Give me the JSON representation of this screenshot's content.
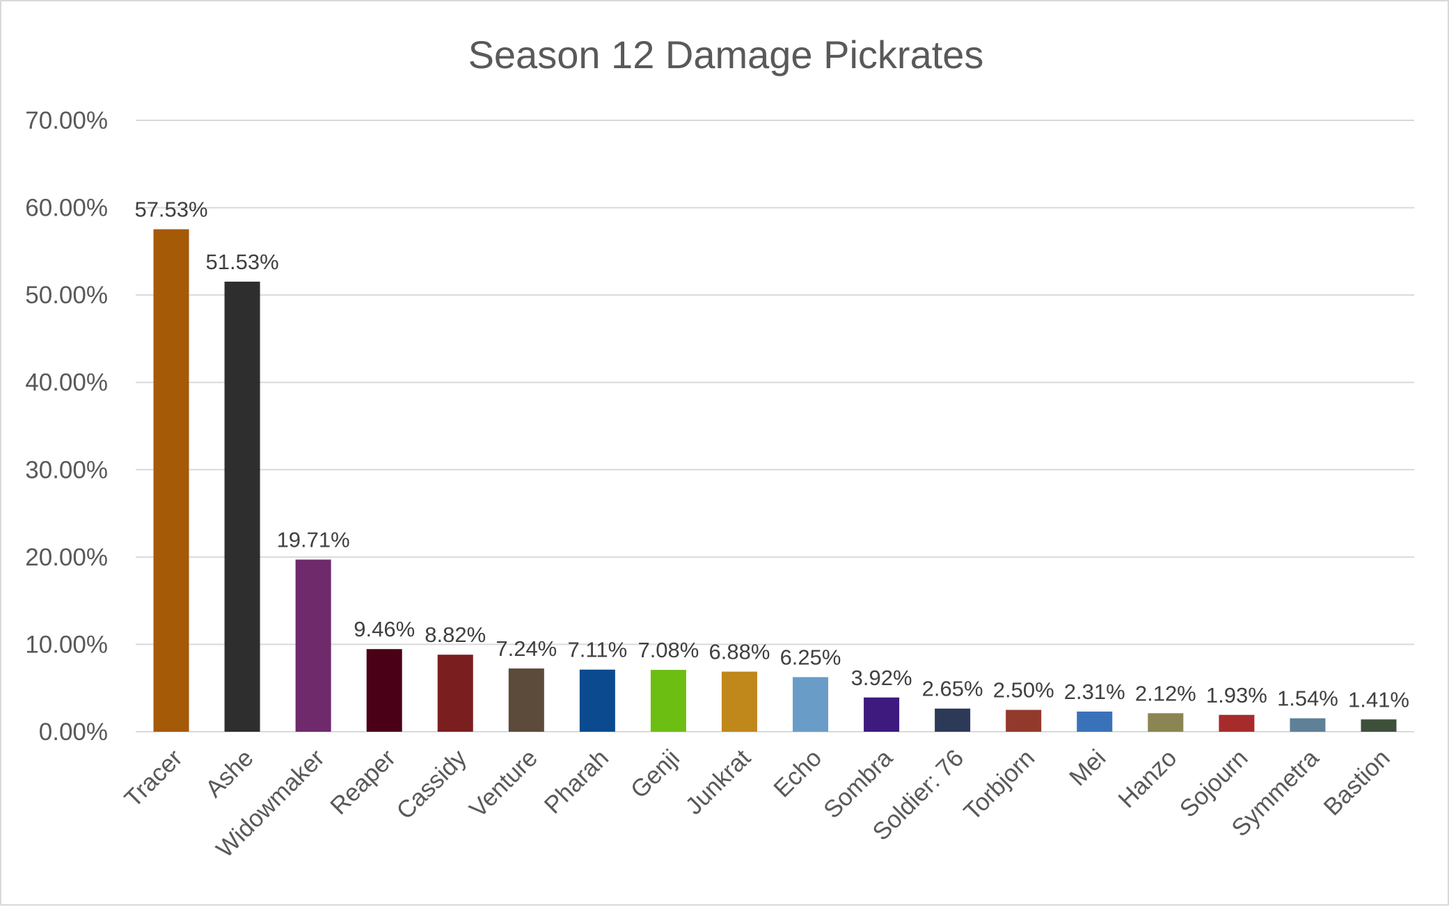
{
  "chart_data": {
    "type": "bar",
    "title": "Season 12 Damage Pickrates",
    "xlabel": "",
    "ylabel": "",
    "ylim": [
      0,
      70
    ],
    "yticks": [
      "0.00%",
      "10.00%",
      "20.00%",
      "30.00%",
      "40.00%",
      "50.00%",
      "60.00%",
      "70.00%"
    ],
    "grid": true,
    "legend": "none",
    "categories": [
      "Tracer",
      "Ashe",
      "Widowmaker",
      "Reaper",
      "Cassidy",
      "Venture",
      "Pharah",
      "Genji",
      "Junkrat",
      "Echo",
      "Sombra",
      "Soldier: 76",
      "Torbjorn",
      "Mei",
      "Hanzo",
      "Sojourn",
      "Symmetra",
      "Bastion"
    ],
    "values": [
      57.53,
      51.53,
      19.71,
      9.46,
      8.82,
      7.24,
      7.11,
      7.08,
      6.88,
      6.25,
      3.92,
      2.65,
      2.5,
      2.31,
      2.12,
      1.93,
      1.54,
      1.41
    ],
    "labels": [
      "57.53%",
      "51.53%",
      "19.71%",
      "9.46%",
      "8.82%",
      "7.24%",
      "7.11%",
      "7.08%",
      "6.88%",
      "6.25%",
      "3.92%",
      "2.65%",
      "2.50%",
      "2.31%",
      "2.12%",
      "1.93%",
      "1.54%",
      "1.41%"
    ],
    "colors": [
      "#A55A07",
      "#2E2E2E",
      "#6F2A6B",
      "#4A0016",
      "#7B1E20",
      "#5C4A3A",
      "#0B4A8F",
      "#6DBE13",
      "#C0871A",
      "#6A9CC8",
      "#3E1A7E",
      "#2C3A58",
      "#93392B",
      "#3A72BA",
      "#8A8553",
      "#A82B2B",
      "#5E8197",
      "#3E5039"
    ]
  }
}
